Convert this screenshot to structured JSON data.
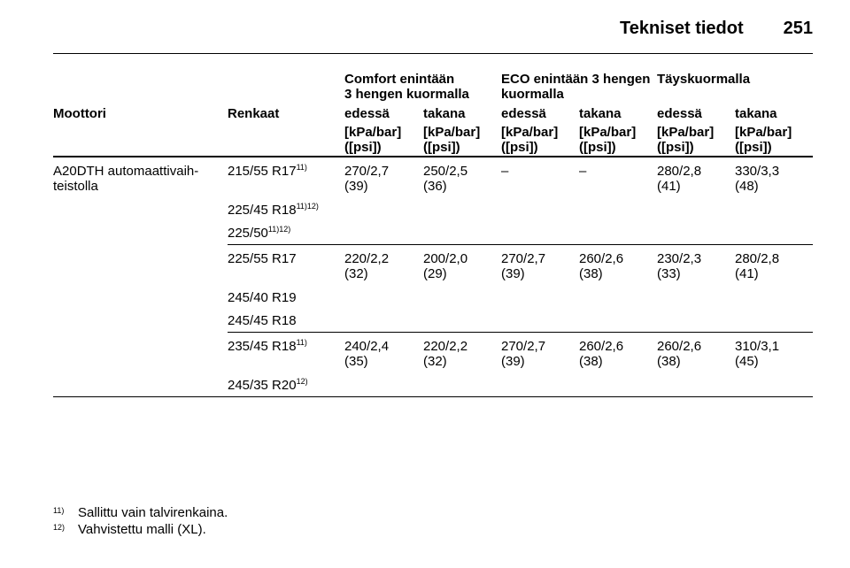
{
  "header": {
    "title": "Tekniset tiedot",
    "page": "251"
  },
  "table": {
    "group_headers": [
      "Comfort enintään\n3 hengen kuormalla",
      "ECO enintään 3 hengen\nkuormalla",
      "Täyskuormalla"
    ],
    "columns": [
      "Moottori",
      "Renkaat",
      "edessä",
      "takana",
      "edessä",
      "takana",
      "edessä",
      "takana"
    ],
    "units": [
      "[kPa/bar]\n([psi])",
      "[kPa/bar]\n([psi])",
      "[kPa/bar]\n([psi])",
      "[kPa/bar]\n([psi])",
      "[kPa/bar]\n([psi])",
      "[kPa/bar]\n([psi])"
    ],
    "groups": [
      {
        "engine": "A20DTH automaattivaih-\nteistolla",
        "tyres": [
          {
            "size": "215/55 R17",
            "note": "11)"
          },
          {
            "size": "225/45 R18",
            "note": "11)12)"
          },
          {
            "size": "225/50",
            "note": "11)12)"
          }
        ],
        "values": [
          "270/2,7\n(39)",
          "250/2,5\n(36)",
          "–",
          "–",
          "280/2,8\n(41)",
          "330/3,3\n(48)"
        ]
      },
      {
        "tyres": [
          {
            "size": "225/55 R17"
          },
          {
            "size": "245/40 R19"
          },
          {
            "size": "245/45 R18"
          }
        ],
        "values": [
          "220/2,2\n(32)",
          "200/2,0\n(29)",
          "270/2,7\n(39)",
          "260/2,6\n(38)",
          "230/2,3\n(33)",
          "280/2,8\n(41)"
        ]
      },
      {
        "tyres": [
          {
            "size": "235/45 R18",
            "note": "11)"
          },
          {
            "size": "245/35 R20",
            "note": "12)"
          }
        ],
        "values": [
          "240/2,4\n(35)",
          "220/2,2\n(32)",
          "270/2,7\n(39)",
          "260/2,6\n(38)",
          "260/2,6\n(38)",
          "310/3,1\n(45)"
        ]
      }
    ]
  },
  "footnotes": [
    {
      "mark": "11)",
      "text": "Sallittu vain talvirenkaina."
    },
    {
      "mark": "12)",
      "text": "Vahvistettu malli (XL)."
    }
  ]
}
